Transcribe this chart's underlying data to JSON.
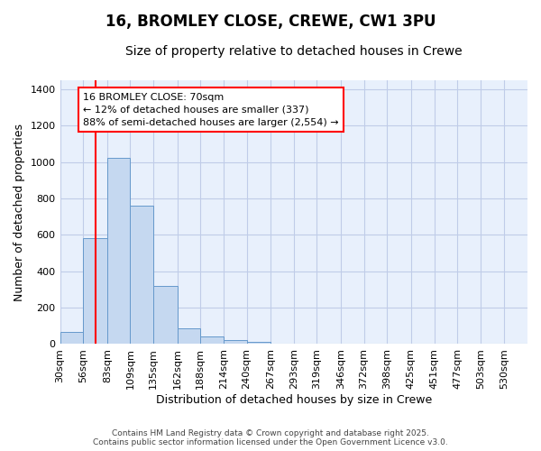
{
  "title1": "16, BROMLEY CLOSE, CREWE, CW1 3PU",
  "title2": "Size of property relative to detached houses in Crewe",
  "xlabel": "Distribution of detached houses by size in Crewe",
  "ylabel": "Number of detached properties",
  "bin_edges": [
    30,
    56,
    83,
    109,
    135,
    162,
    188,
    214,
    240,
    267,
    293,
    319,
    346,
    372,
    398,
    425,
    451,
    477,
    503,
    530,
    556
  ],
  "bar_heights": [
    68,
    580,
    1025,
    760,
    320,
    88,
    40,
    20,
    10,
    3,
    2,
    0,
    0,
    0,
    0,
    0,
    0,
    0,
    0,
    0
  ],
  "bar_color": "#c5d8f0",
  "bar_edge_color": "#6699cc",
  "red_line_x": 70,
  "annotation_text_line1": "16 BROMLEY CLOSE: 70sqm",
  "annotation_text_line2": "← 12% of detached houses are smaller (337)",
  "annotation_text_line3": "88% of semi-detached houses are larger (2,554) →",
  "ylim": [
    0,
    1450
  ],
  "yticks": [
    0,
    200,
    400,
    600,
    800,
    1000,
    1200,
    1400
  ],
  "title_fontsize": 12,
  "subtitle_fontsize": 10,
  "xlabel_fontsize": 9,
  "ylabel_fontsize": 9,
  "tick_fontsize": 8,
  "annotation_fontsize": 8,
  "footer_text": "Contains HM Land Registry data © Crown copyright and database right 2025.\nContains public sector information licensed under the Open Government Licence v3.0.",
  "bg_color": "#ffffff",
  "plot_bg_color": "#e8f0fc",
  "grid_color": "#c0cce8"
}
